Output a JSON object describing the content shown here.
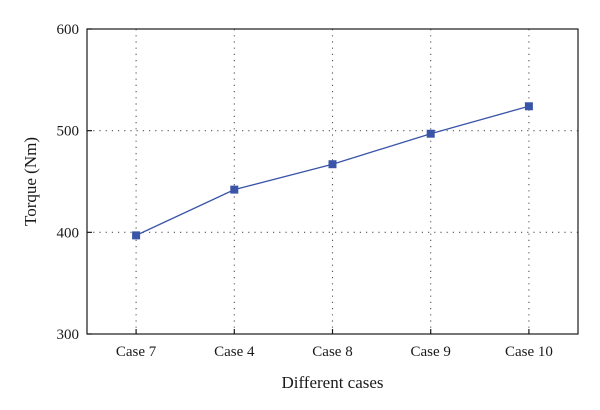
{
  "chart_data": {
    "type": "line",
    "title": "",
    "xlabel": "Different cases",
    "ylabel": "Torque (Nm)",
    "categories": [
      "Case 7",
      "Case 4",
      "Case 8",
      "Case 9",
      "Case 10"
    ],
    "series": [
      {
        "values": [
          397,
          442,
          467,
          497,
          524
        ],
        "color": "#3a55a8",
        "marker": "square"
      }
    ],
    "ylim": [
      300,
      600
    ],
    "yticks": [
      300,
      400,
      500,
      600
    ],
    "grid": "dotted",
    "legend": "none"
  }
}
